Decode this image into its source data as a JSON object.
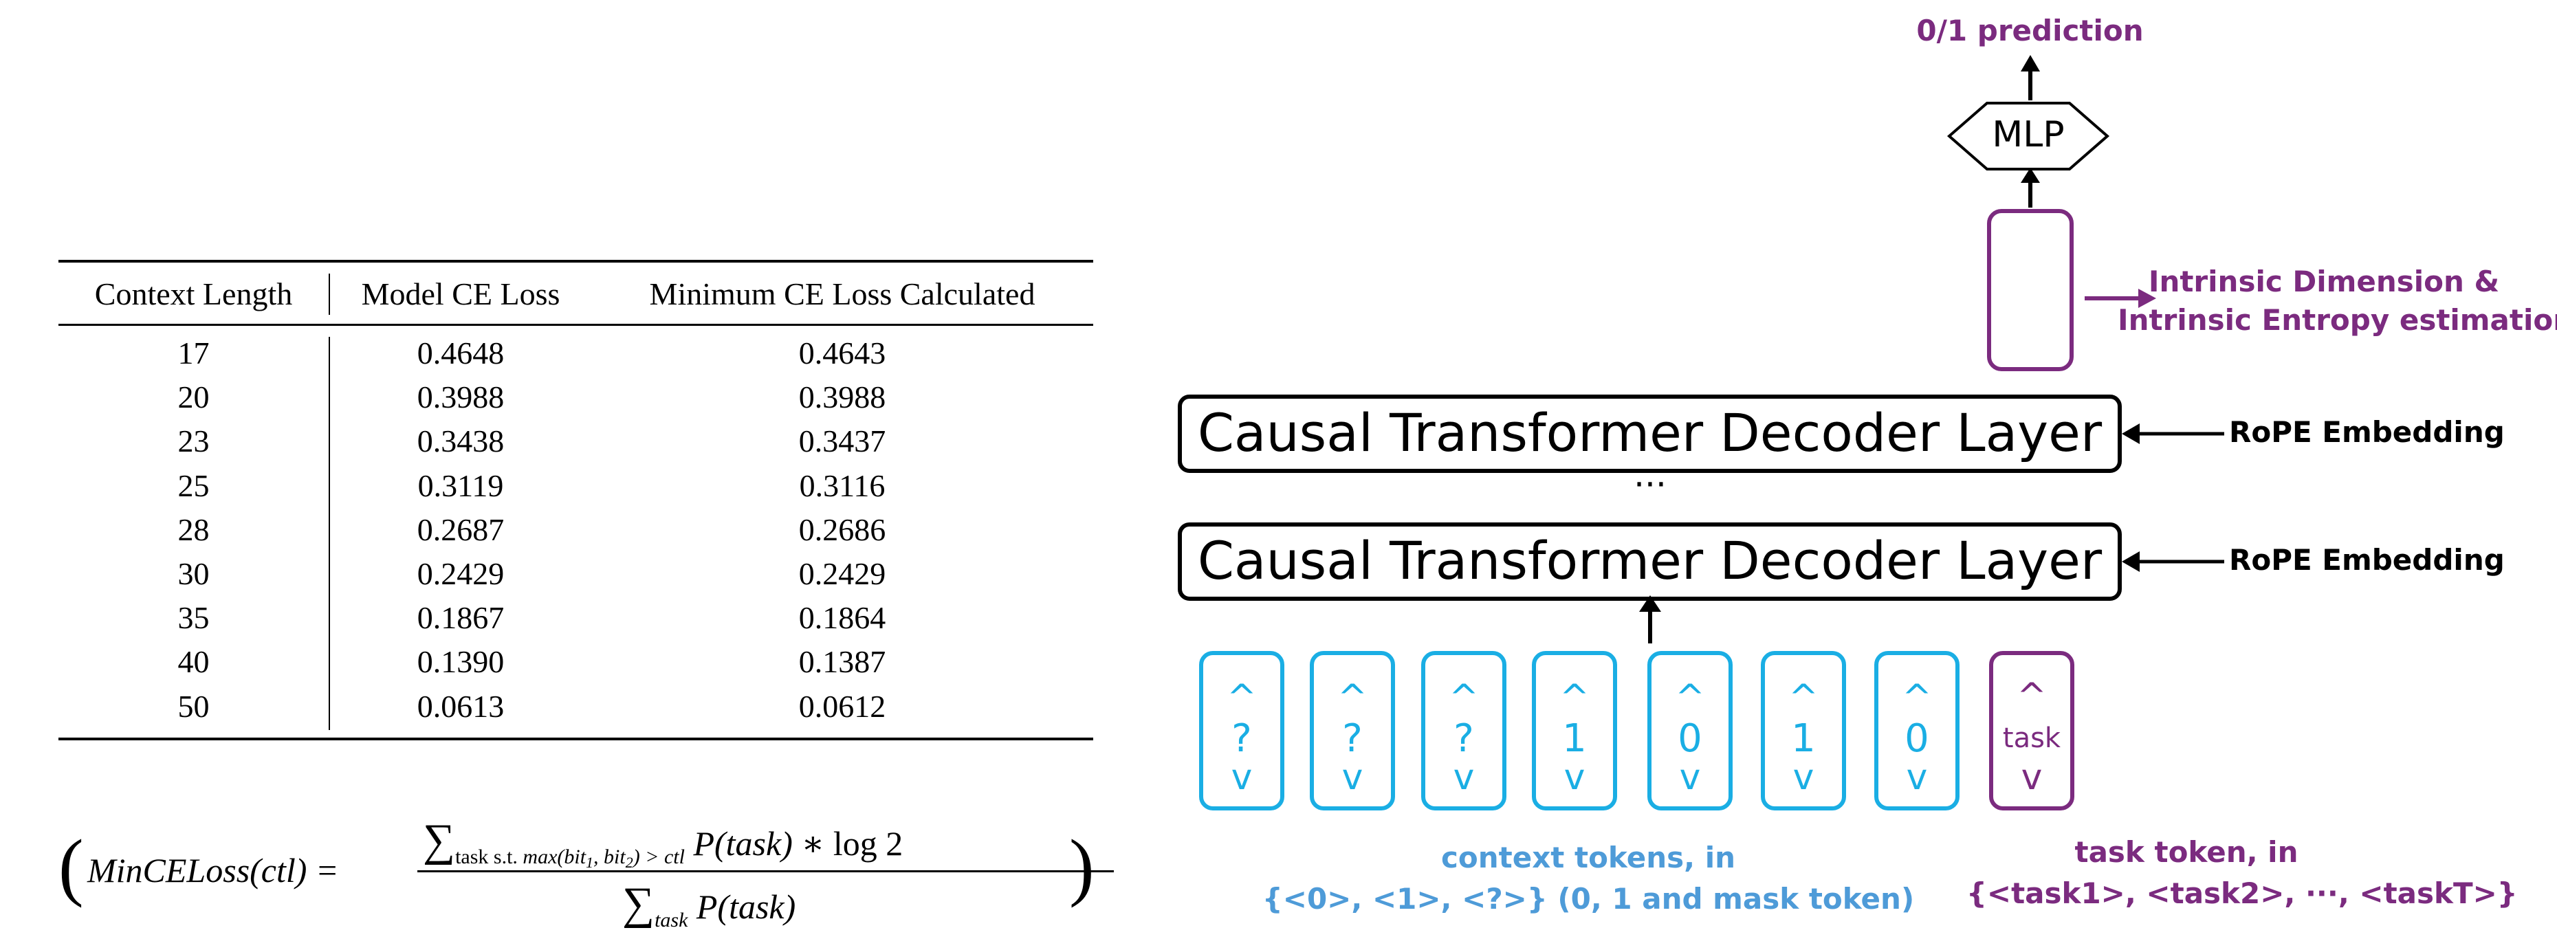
{
  "table": {
    "headers": [
      "Context Length",
      "Model CE Loss",
      "Minimum CE Loss Calculated"
    ],
    "rows": [
      [
        "17",
        "0.4648",
        "0.4643"
      ],
      [
        "20",
        "0.3988",
        "0.3988"
      ],
      [
        "23",
        "0.3438",
        "0.3437"
      ],
      [
        "25",
        "0.3119",
        "0.3116"
      ],
      [
        "28",
        "0.2687",
        "0.2686"
      ],
      [
        "30",
        "0.2429",
        "0.2429"
      ],
      [
        "35",
        "0.1867",
        "0.1864"
      ],
      [
        "40",
        "0.1390",
        "0.1387"
      ],
      [
        "50",
        "0.0613",
        "0.0612"
      ]
    ]
  },
  "formula": {
    "open_paren": "(",
    "close_paren": ")",
    "lhs": "MinCELoss(ctl) =",
    "sum_symbol": "∑",
    "num_sub_text": "task s.t.",
    "num_sub_expr": "max(bit",
    "num_sub_i1": "1",
    "num_sub_mid": ", bit",
    "num_sub_i2": "2",
    "num_sub_end": ") > ctl",
    "num_tail_p": "P(task)",
    "num_tail_rest": "∗ log 2",
    "den_sub": "task",
    "den_p": "P(task)"
  },
  "diagram": {
    "output_label": "0/1 prediction",
    "mlp_label": "MLP",
    "intrinsic_line1": "Intrinsic Dimension &",
    "intrinsic_line2": "Intrinsic Entropy estimation",
    "layer_label_top": "Causal Transformer Decoder Layer",
    "layer_label_bottom": "Causal Transformer Decoder Layer",
    "ellipsis": "···",
    "rope_top": "RoPE Embedding",
    "rope_bottom": "RoPE Embedding",
    "tokens": [
      {
        "caret": "^",
        "symbol": "?",
        "vee": "v"
      },
      {
        "caret": "^",
        "symbol": "?",
        "vee": "v"
      },
      {
        "caret": "^",
        "symbol": "?",
        "vee": "v"
      },
      {
        "caret": "^",
        "symbol": "1",
        "vee": "v"
      },
      {
        "caret": "^",
        "symbol": "0",
        "vee": "v"
      },
      {
        "caret": "^",
        "symbol": "1",
        "vee": "v"
      },
      {
        "caret": "^",
        "symbol": "0",
        "vee": "v"
      }
    ],
    "task_token": {
      "caret": "^",
      "symbol": "task",
      "vee": "v"
    },
    "context_caption_line1": "context tokens, in",
    "context_caption_line2": "{<0>, <1>, <?>} (0, 1 and mask token)",
    "task_caption_line1": "task token, in",
    "task_caption_line2": "{<task1>, <task2>, ···, <taskT>}",
    "colors": {
      "purple": "#7b2b7f",
      "blue": "#1aaee4",
      "caption_blue": "#4e9bd8"
    }
  }
}
